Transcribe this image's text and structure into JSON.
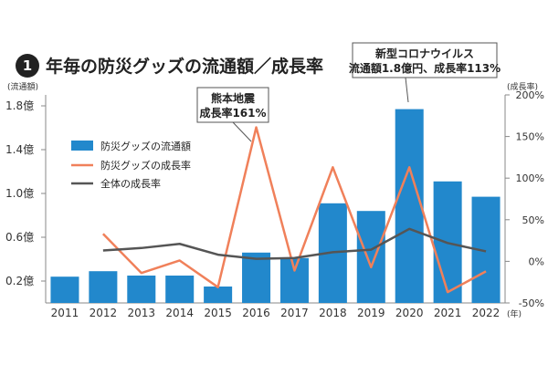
{
  "header": {
    "badge": "1",
    "title": "年毎の防災グッズの流通額／成長率"
  },
  "chart_data": {
    "type": "bar",
    "categories": [
      "2011",
      "2012",
      "2013",
      "2014",
      "2015",
      "2016",
      "2017",
      "2018",
      "2019",
      "2020",
      "2021",
      "2022"
    ],
    "x_unit": "(年)",
    "left_axis": {
      "unit": "(流通額)",
      "ticks": [
        "1.8億",
        "1.4億",
        "1.0億",
        "0.6億",
        "0.2億"
      ],
      "tick_values": [
        1.8,
        1.4,
        1.0,
        0.6,
        0.2
      ],
      "range": [
        0.0,
        1.9
      ]
    },
    "right_axis": {
      "unit": "(成長率)",
      "ticks": [
        "200%",
        "150%",
        "100%",
        "50%",
        "0%",
        "-50%"
      ],
      "tick_values": [
        200,
        150,
        100,
        50,
        0,
        -50
      ],
      "range": [
        -50,
        200
      ]
    },
    "series": [
      {
        "name": "防災グッズの流通額",
        "kind": "bar",
        "axis": "left",
        "color": "#2288cc",
        "values": [
          0.24,
          0.29,
          0.25,
          0.25,
          0.15,
          0.46,
          0.41,
          0.91,
          0.84,
          1.77,
          1.11,
          0.97
        ]
      },
      {
        "name": "防災グッズの成長率",
        "kind": "line",
        "axis": "right",
        "color": "#f0805a",
        "values": [
          null,
          33,
          -14,
          1,
          -31,
          161,
          -11,
          113,
          -7,
          113,
          -37,
          -12
        ]
      },
      {
        "name": "全体の成長率",
        "kind": "line",
        "axis": "right",
        "color": "#555555",
        "values": [
          null,
          13,
          16,
          21,
          8,
          3,
          4,
          11,
          14,
          39,
          22,
          12
        ]
      }
    ],
    "annotations": [
      {
        "lines": [
          "熊本地震",
          "成長率161%"
        ],
        "target_index": 5
      },
      {
        "lines": [
          "新型コロナウイルス",
          "流通額1.8億円、成長率113%"
        ],
        "target_index": 9
      }
    ],
    "grid": false,
    "legend_position": "top-left"
  }
}
